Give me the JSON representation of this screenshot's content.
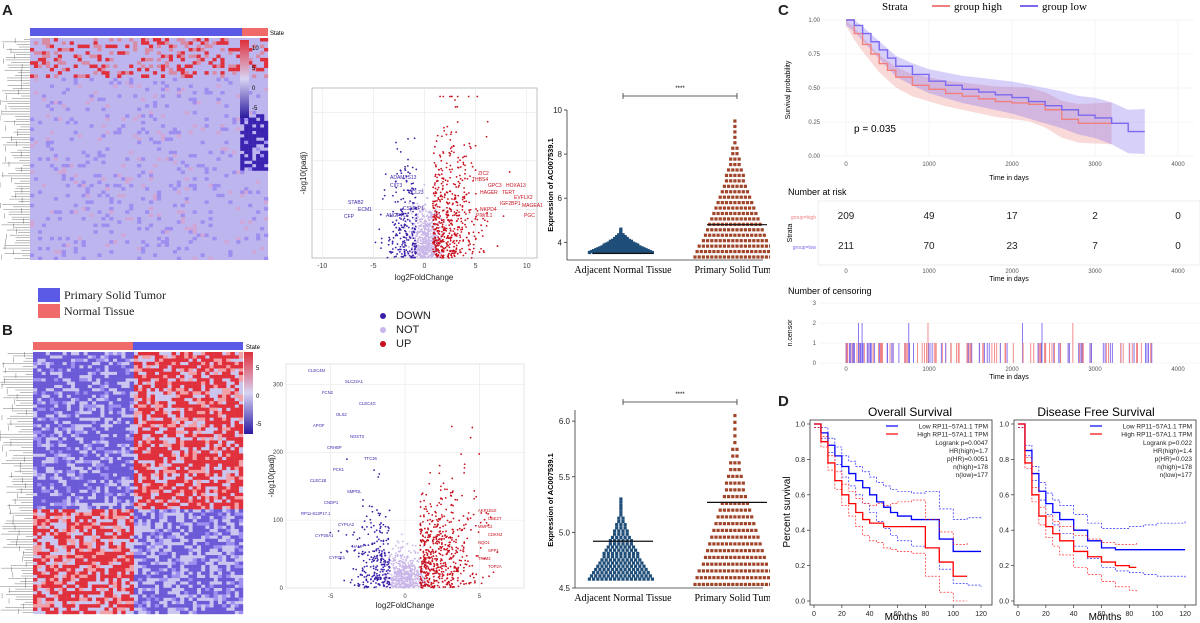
{
  "panel_letters": {
    "A": "A",
    "B": "B",
    "C": "C",
    "D": "D"
  },
  "colors": {
    "down": "#3b1fa8",
    "not": "#c9b6e8",
    "up": "#c8101e",
    "heat_low": "#3b22b0",
    "heat_mid": "#c9c4ee",
    "heat_high": "#e0303c",
    "tumor_band": "#5a5ae6",
    "normal_band": "#f06a6a",
    "dot_normal": "#1f4e79",
    "dot_tumor": "#a0442a",
    "km_high": "#f08080",
    "km_low": "#7b68ee",
    "os_low": "#0000ff",
    "os_high": "#ff0000"
  },
  "heatmap_A": {
    "state_label": "State",
    "scale_ticks": [
      "10",
      "5",
      "0",
      "-5"
    ],
    "legend": [
      {
        "label": "Primary Solid Tumor"
      },
      {
        "label": "Normal Tissue"
      }
    ]
  },
  "heatmap_B": {
    "state_label": "State",
    "scale_ticks": [
      "5",
      "0",
      "-5"
    ]
  },
  "volcano_legend": [
    {
      "key": "down",
      "label": "DOWN"
    },
    {
      "key": "not",
      "label": "NOT"
    },
    {
      "key": "up",
      "label": "UP"
    }
  ],
  "chart_data": [
    {
      "id": "volcano_A",
      "type": "scatter",
      "title": "",
      "xlabel": "log2FoldChange",
      "ylabel": "-log10(padj)",
      "xlim": [
        -11,
        11
      ],
      "ylim": [
        0,
        14
      ],
      "xticks": [
        "-10",
        "-5",
        "0",
        "5",
        "10"
      ],
      "labels_down": [
        "ADAMTS13",
        "CIIT3",
        "CCL23",
        "STAB2",
        "CSMNP1",
        "ECM1",
        "ANGPTL6",
        "CFP"
      ],
      "labels_up": [
        "ZIC2",
        "THBS4",
        "GPC3",
        "HOXA13",
        "HAGER",
        "TERT",
        "EVFLX2",
        "IGF2BP1",
        "MAGEA1",
        "NKPD4",
        "PIWIL1",
        "PGC"
      ],
      "series": [
        {
          "name": "DOWN",
          "n": 220
        },
        {
          "name": "NOT",
          "n": 500
        },
        {
          "name": "UP",
          "n": 520
        }
      ]
    },
    {
      "id": "dot_A",
      "type": "scatter",
      "title": "",
      "ylabel": "Expression of AC007539.1",
      "categories": [
        "Adjacent Normal Tissue",
        "Primary Solid Tumor"
      ],
      "ylim": [
        3.2,
        10
      ],
      "yticks": [
        "4",
        "6",
        "8",
        "10"
      ],
      "significance": "****",
      "series": [
        {
          "name": "Adjacent Normal Tissue",
          "median": 3.5,
          "max": 4.6
        },
        {
          "name": "Primary Solid Tumor",
          "median": 4.8,
          "max": 9.5
        }
      ]
    },
    {
      "id": "volcano_B",
      "type": "scatter",
      "title": "",
      "xlabel": "log2FoldChange",
      "ylabel": "-log10(padj)",
      "xticks": [
        "-5",
        "0",
        "5"
      ],
      "yticks": [
        "0",
        "100",
        "200",
        "300"
      ],
      "labels_down": [
        "CLEC4M",
        "SLC22A1",
        "FCN2",
        "CLEC4G",
        "OLS2",
        "APOF",
        "NOST3",
        "CRHBP",
        "TTC36",
        "PCK1",
        "CLEC1B",
        "SMPDL",
        "CNDP1",
        "RP11-813P17.1",
        "CYP1A2",
        "CYP26A1",
        "HAMP",
        "CYP2E1"
      ],
      "labels_up": [
        "AKR1B10",
        "UBE2T",
        "MMP12",
        "CDKN3",
        "NQO1",
        "SPP1",
        "TRIM2",
        "TOP2A"
      ],
      "series": [
        {
          "name": "DOWN",
          "n": 260
        },
        {
          "name": "NOT",
          "n": 500
        },
        {
          "name": "UP",
          "n": 560
        }
      ]
    },
    {
      "id": "dot_B",
      "type": "scatter",
      "title": "",
      "ylabel": "Expression of AC007539.1",
      "categories": [
        "Adjacent Normal Tissue",
        "Primary Solid Tumor"
      ],
      "ylim": [
        4.5,
        6.1
      ],
      "yticks": [
        "4.5",
        "5.0",
        "5.5",
        "6.0"
      ],
      "significance": "****",
      "series": [
        {
          "name": "Adjacent Normal Tissue",
          "median": 4.92,
          "max": 5.3
        },
        {
          "name": "Primary Solid Tumor",
          "median": 5.27,
          "max": 6.05
        }
      ]
    },
    {
      "id": "km_C",
      "type": "line",
      "title": "",
      "legend_title": "Strata",
      "xlabel": "Time in days",
      "ylabel": "Survival probability",
      "xlim": [
        0,
        4000
      ],
      "ylim": [
        0,
        1
      ],
      "xticks": [
        "0",
        "1000",
        "2000",
        "3000",
        "4000"
      ],
      "yticks": [
        "0.00",
        "0.25",
        "0.50",
        "0.75",
        "1.00"
      ],
      "pvalue": "p = 0.035",
      "series": [
        {
          "name": "group high",
          "x": [
            0,
            100,
            200,
            300,
            400,
            500,
            600,
            800,
            1000,
            1200,
            1400,
            1600,
            1800,
            2000,
            2200,
            2400,
            2600,
            2800,
            3000,
            3200
          ],
          "y": [
            1.0,
            0.9,
            0.82,
            0.75,
            0.68,
            0.63,
            0.58,
            0.52,
            0.49,
            0.46,
            0.44,
            0.42,
            0.4,
            0.39,
            0.38,
            0.34,
            0.27,
            0.24,
            0.24,
            0.24
          ]
        },
        {
          "name": "group low",
          "x": [
            0,
            100,
            200,
            300,
            400,
            500,
            600,
            800,
            1000,
            1200,
            1400,
            1600,
            1800,
            2000,
            2200,
            2400,
            2600,
            2800,
            3000,
            3200,
            3400,
            3600
          ],
          "y": [
            1.0,
            0.96,
            0.9,
            0.84,
            0.78,
            0.72,
            0.66,
            0.6,
            0.55,
            0.52,
            0.49,
            0.47,
            0.45,
            0.43,
            0.4,
            0.37,
            0.34,
            0.3,
            0.28,
            0.24,
            0.18,
            0.18
          ]
        }
      ]
    },
    {
      "id": "risk_C",
      "type": "table",
      "title": "Number at risk",
      "xlabel": "Time in days",
      "ylabel": "Strata",
      "xticks": [
        "0",
        "1000",
        "2000",
        "3000",
        "4000"
      ],
      "rows": [
        {
          "name": "group=high",
          "values": [
            "209",
            "49",
            "17",
            "2",
            "0"
          ]
        },
        {
          "name": "group=low",
          "values": [
            "211",
            "70",
            "23",
            "7",
            "0"
          ]
        }
      ]
    },
    {
      "id": "censor_C",
      "type": "bar",
      "title": "Number of censoring",
      "xlabel": "Time in days",
      "ylabel": "n.censor",
      "xticks": [
        "0",
        "1000",
        "2000",
        "3000",
        "4000"
      ],
      "yticks": [
        "0",
        "1",
        "2",
        "3"
      ]
    },
    {
      "id": "os_D",
      "type": "line",
      "title": "Overall Survival",
      "xlabel": "Months",
      "ylabel": "Percent survival",
      "xlim": [
        0,
        120
      ],
      "ylim": [
        0,
        1
      ],
      "xticks": [
        "0",
        "20",
        "40",
        "60",
        "80",
        "100",
        "120"
      ],
      "yticks": [
        "0.0",
        "0.2",
        "0.4",
        "0.6",
        "0.8",
        "1.0"
      ],
      "legend": [
        "Low RP11−57A1.1 TPM",
        "High RP11−57A1.1 TPM"
      ],
      "stats": [
        "Logrank p=0.0047",
        "HR(high)=1.7",
        "p(HR)=0.0051",
        "n(high)=178",
        "n(low)=177"
      ],
      "series": [
        {
          "name": "Low RP11−57A1.1 TPM",
          "x": [
            0,
            5,
            10,
            15,
            20,
            25,
            30,
            35,
            40,
            45,
            50,
            55,
            60,
            70,
            80,
            90,
            100,
            110,
            120
          ],
          "y": [
            1.0,
            0.95,
            0.88,
            0.82,
            0.76,
            0.72,
            0.68,
            0.64,
            0.6,
            0.56,
            0.53,
            0.5,
            0.48,
            0.46,
            0.46,
            0.35,
            0.28,
            0.28,
            0.28
          ]
        },
        {
          "name": "High RP11−57A1.1 TPM",
          "x": [
            0,
            5,
            10,
            15,
            20,
            25,
            30,
            35,
            40,
            45,
            50,
            55,
            60,
            70,
            80,
            90,
            100,
            110
          ],
          "y": [
            1.0,
            0.9,
            0.78,
            0.68,
            0.6,
            0.55,
            0.5,
            0.46,
            0.44,
            0.44,
            0.42,
            0.42,
            0.42,
            0.42,
            0.3,
            0.22,
            0.14,
            0.14
          ]
        }
      ]
    },
    {
      "id": "dfs_D",
      "type": "line",
      "title": "Disease Free Survival",
      "xlabel": "Months",
      "ylabel": "",
      "xlim": [
        0,
        120
      ],
      "ylim": [
        0,
        1
      ],
      "xticks": [
        "0",
        "20",
        "40",
        "60",
        "80",
        "100",
        "120"
      ],
      "yticks": [
        "0.0",
        "0.2",
        "0.4",
        "0.6",
        "0.8",
        "1.0"
      ],
      "legend": [
        "Low RP11−57A1.1 TPM",
        "High RP11−57A1.1 TPM"
      ],
      "stats": [
        "Logrank p=0.022",
        "HR(high)=1.4",
        "p(HR)=0.023",
        "n(high)=178",
        "n(low)=177"
      ],
      "series": [
        {
          "name": "Low RP11−57A1.1 TPM",
          "x": [
            0,
            5,
            10,
            15,
            20,
            25,
            30,
            40,
            50,
            60,
            70,
            80,
            90,
            100,
            120
          ],
          "y": [
            1.0,
            0.85,
            0.72,
            0.62,
            0.55,
            0.5,
            0.46,
            0.4,
            0.34,
            0.3,
            0.29,
            0.29,
            0.29,
            0.29,
            0.29
          ]
        },
        {
          "name": "High RP11−57A1.1 TPM",
          "x": [
            0,
            5,
            10,
            15,
            20,
            25,
            30,
            40,
            50,
            60,
            70,
            80,
            85
          ],
          "y": [
            1.0,
            0.78,
            0.6,
            0.48,
            0.42,
            0.38,
            0.34,
            0.28,
            0.25,
            0.22,
            0.2,
            0.19,
            0.19
          ]
        }
      ]
    }
  ]
}
